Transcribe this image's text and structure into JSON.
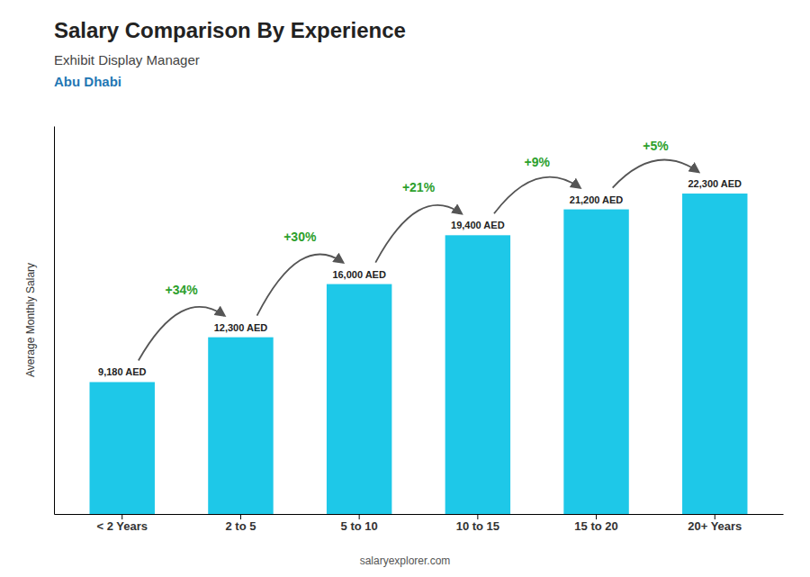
{
  "chart_data": {
    "type": "bar",
    "title": "Salary Comparison By Experience",
    "subtitle": "Exhibit Display Manager",
    "city": "Abu Dhabi",
    "categories": [
      "< 2 Years",
      "2 to 5",
      "5 to 10",
      "10 to 15",
      "15 to 20",
      "20+ Years"
    ],
    "values": [
      9180,
      12300,
      16000,
      19400,
      21200,
      22300
    ],
    "value_labels": [
      "9,180 AED",
      "12,300 AED",
      "16,000 AED",
      "19,400 AED",
      "21,200 AED",
      "22,300 AED"
    ],
    "data_labels": true,
    "annotations": [
      "+34%",
      "+30%",
      "+21%",
      "+9%",
      "+5%"
    ],
    "ylabel": "Average Monthly Salary",
    "footer": "salaryexplorer.com",
    "color": "#1EC8E8",
    "ylim": [
      0,
      27000
    ],
    "tick_labels": "x"
  }
}
